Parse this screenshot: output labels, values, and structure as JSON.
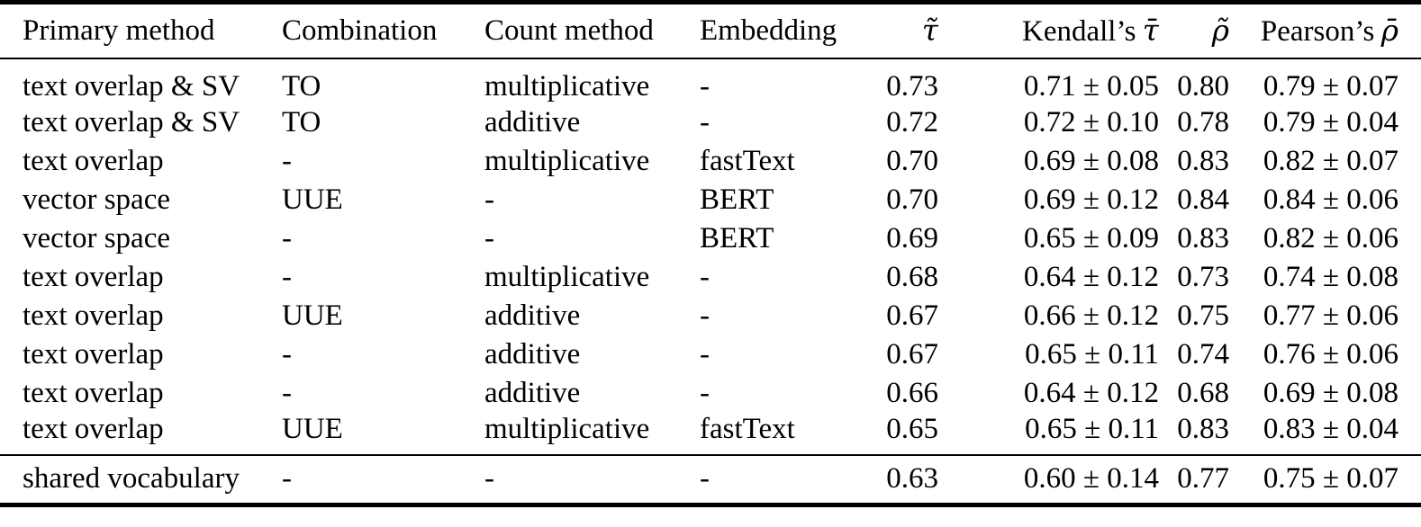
{
  "page": {
    "background_color": "#ffffff",
    "text_color": "#000000",
    "rule_color": "#000000"
  },
  "table": {
    "header": {
      "primary_method": "Primary method",
      "combination": "Combination",
      "count_method": "Count method",
      "embedding": "Embedding",
      "tau_tilde": "τ̃",
      "kendalls_prefix": "Kendall’s",
      "kendalls_symbol": "τ̄",
      "rho_tilde": "ρ̃",
      "pearsons_prefix": "Pearson’s",
      "pearsons_symbol": "ρ̄"
    },
    "rows": [
      {
        "primary_method": "text overlap & SV",
        "combination": "TO",
        "count_method": "multiplicative",
        "embedding": "-",
        "tau_tilde": "0.73",
        "kendalls_tau": "0.71 ± 0.05",
        "rho_tilde": "0.80",
        "pearsons_rho": "0.79 ± 0.07"
      },
      {
        "primary_method": "text overlap & SV",
        "combination": "TO",
        "count_method": "additive",
        "embedding": "-",
        "tau_tilde": "0.72",
        "kendalls_tau": "0.72 ± 0.10",
        "rho_tilde": "0.78",
        "pearsons_rho": "0.79 ± 0.04"
      },
      {
        "primary_method": "text overlap",
        "combination": "-",
        "count_method": "multiplicative",
        "embedding": "fastText",
        "tau_tilde": "0.70",
        "kendalls_tau": "0.69 ± 0.08",
        "rho_tilde": "0.83",
        "pearsons_rho": "0.82 ± 0.07"
      },
      {
        "primary_method": "vector space",
        "combination": "UUE",
        "count_method": "-",
        "embedding": "BERT",
        "tau_tilde": "0.70",
        "kendalls_tau": "0.69 ± 0.12",
        "rho_tilde": "0.84",
        "pearsons_rho": "0.84 ± 0.06"
      },
      {
        "primary_method": "vector space",
        "combination": "-",
        "count_method": "-",
        "embedding": "BERT",
        "tau_tilde": "0.69",
        "kendalls_tau": "0.65 ± 0.09",
        "rho_tilde": "0.83",
        "pearsons_rho": "0.82 ± 0.06"
      },
      {
        "primary_method": "text overlap",
        "combination": "-",
        "count_method": "multiplicative",
        "embedding": "-",
        "tau_tilde": "0.68",
        "kendalls_tau": "0.64 ± 0.12",
        "rho_tilde": "0.73",
        "pearsons_rho": "0.74 ± 0.08"
      },
      {
        "primary_method": "text overlap",
        "combination": "UUE",
        "count_method": "additive",
        "embedding": "-",
        "tau_tilde": "0.67",
        "kendalls_tau": "0.66 ± 0.12",
        "rho_tilde": "0.75",
        "pearsons_rho": "0.77 ± 0.06"
      },
      {
        "primary_method": "text overlap",
        "combination": "-",
        "count_method": "additive",
        "embedding": "-",
        "tau_tilde": "0.67",
        "kendalls_tau": "0.65 ± 0.11",
        "rho_tilde": "0.74",
        "pearsons_rho": "0.76 ± 0.06"
      },
      {
        "primary_method": "text overlap",
        "combination": "-",
        "count_method": "additive",
        "embedding": "-",
        "tau_tilde": "0.66",
        "kendalls_tau": "0.64 ± 0.12",
        "rho_tilde": "0.68",
        "pearsons_rho": "0.69 ± 0.08"
      },
      {
        "primary_method": "text overlap",
        "combination": "UUE",
        "count_method": "multiplicative",
        "embedding": "fastText",
        "tau_tilde": "0.65",
        "kendalls_tau": "0.65 ± 0.11",
        "rho_tilde": "0.83",
        "pearsons_rho": "0.83 ± 0.04"
      }
    ],
    "footer_rows": [
      {
        "primary_method": "shared vocabulary",
        "combination": "-",
        "count_method": "-",
        "embedding": "-",
        "tau_tilde": "0.63",
        "kendalls_tau": "0.60 ± 0.14",
        "rho_tilde": "0.77",
        "pearsons_rho": "0.75 ± 0.07"
      }
    ]
  }
}
